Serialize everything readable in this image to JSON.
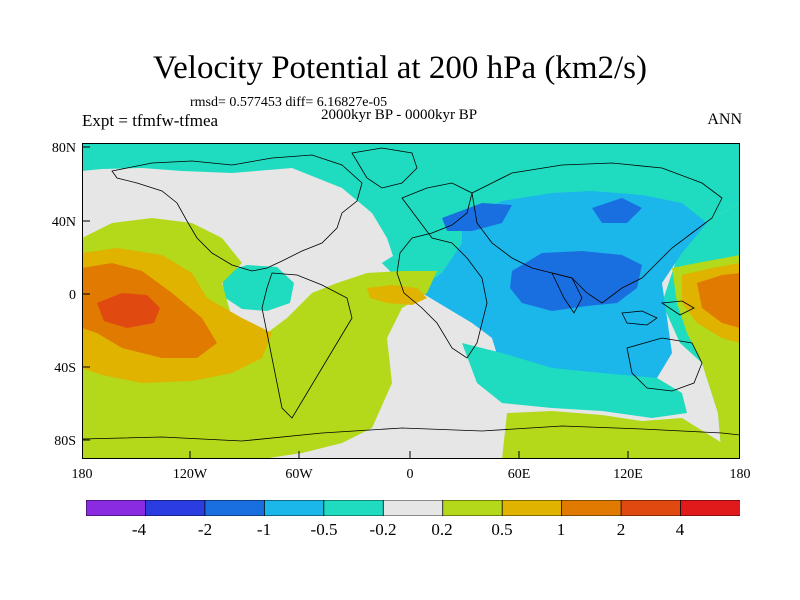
{
  "header": {
    "title": "Velocity Potential at 200 hPa (km2/s)",
    "stats": "rmsd= 0.577453 diff= 6.16827e-05",
    "period": "2000kyr BP - 0000kyr BP",
    "experiment": "Expt = tfmfw-tfmea",
    "season": "ANN"
  },
  "axes": {
    "lat_ticks": [
      "80N",
      "40N",
      "0",
      "40S",
      "80S"
    ],
    "lon_ticks": [
      "180",
      "120W",
      "60W",
      "0",
      "60E",
      "120E",
      "180"
    ]
  },
  "colorbar": {
    "labels": [
      "-4",
      "-2",
      "-1",
      "-0.5",
      "-0.2",
      "0.2",
      "0.5",
      "1",
      "2",
      "4"
    ],
    "colors": [
      "#8a2be2",
      "#2a3de0",
      "#1a6fe0",
      "#1bb6ea",
      "#1fdcc0",
      "#e6e6e6",
      "#b3d91a",
      "#e0b300",
      "#e07a00",
      "#e04a10",
      "#e01a1a"
    ]
  },
  "colors": {
    "ocean_background": "#ffffff",
    "coastline": "#000000"
  }
}
